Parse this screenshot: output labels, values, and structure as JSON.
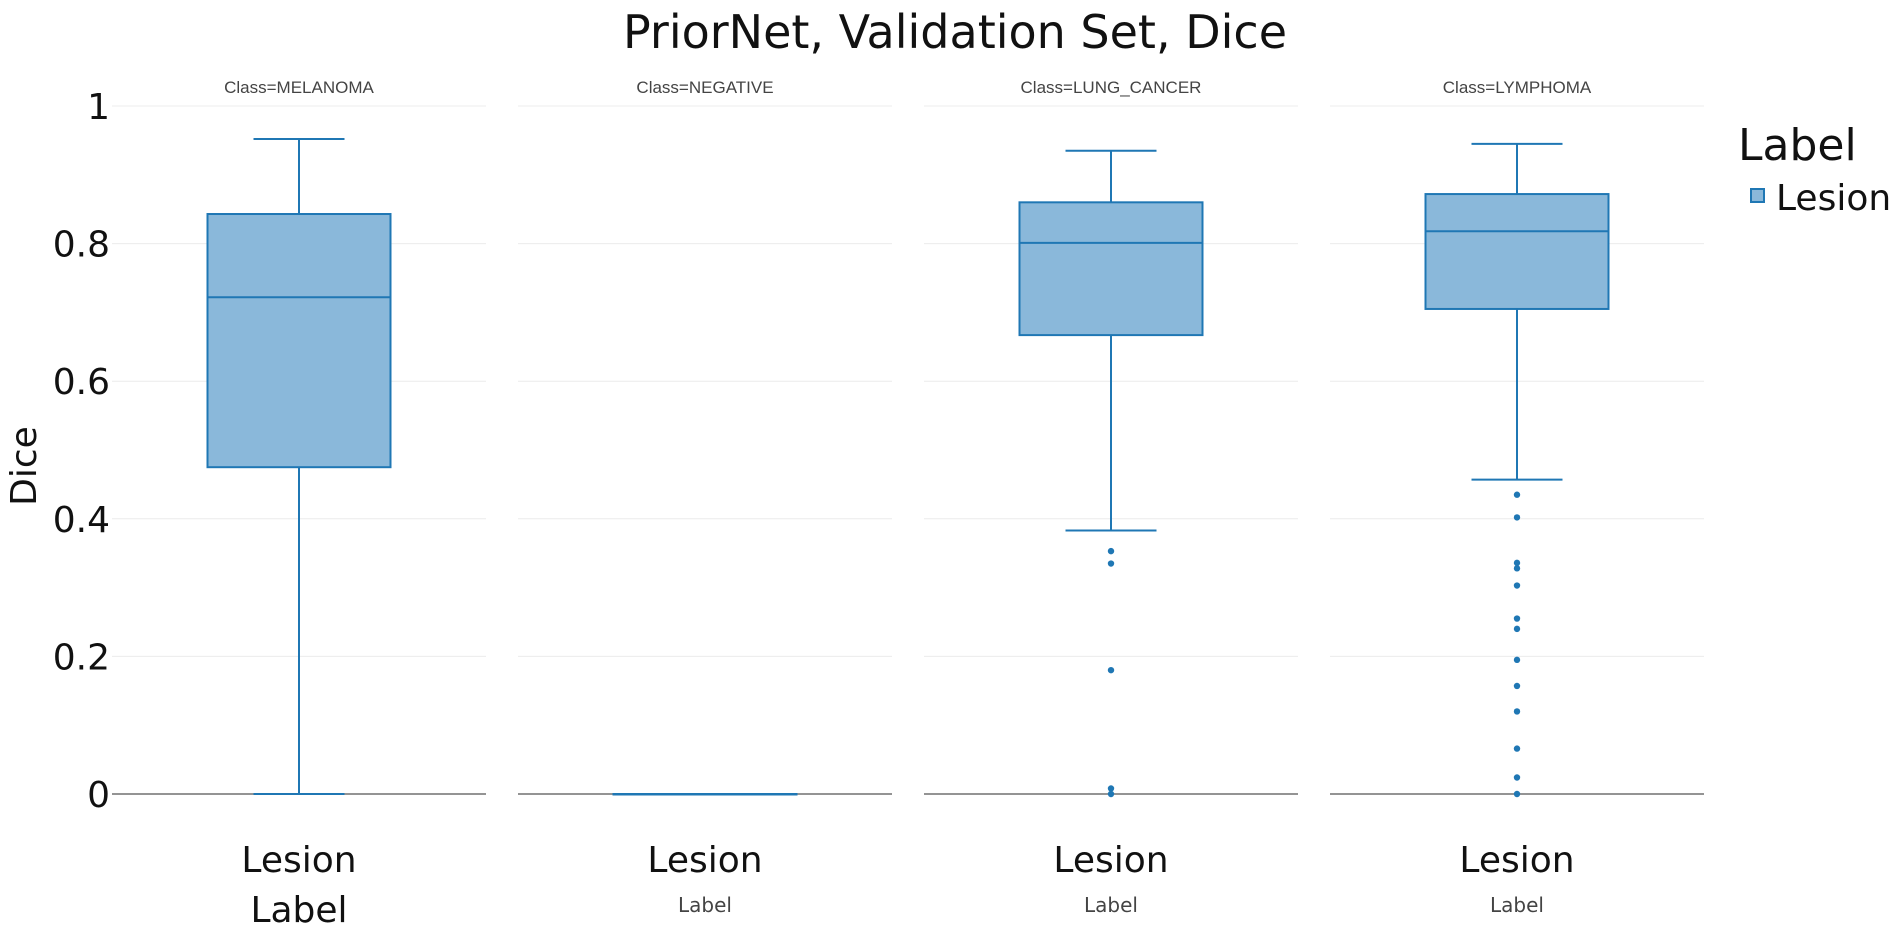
{
  "chart_data": {
    "type": "box",
    "title": "PriorNet, Validation Set, Dice",
    "ylabel": "Dice",
    "xlabel": "Label",
    "ylim": [
      0,
      1
    ],
    "yticks": [
      "0",
      "0.2",
      "0.4",
      "0.6",
      "0.8",
      "1"
    ],
    "grid": true,
    "legend": {
      "title": "Label",
      "position": "top-right",
      "entries": [
        "Lesion"
      ]
    },
    "colors": {
      "fill": "#8ab8da",
      "stroke": "#1f77b4",
      "grid": "#ececec",
      "zero_line": "#555555"
    },
    "facets": [
      {
        "label": "Class=MELANOMA",
        "category": "Lesion",
        "box": {
          "min": 0.0,
          "q1": 0.475,
          "median": 0.722,
          "q3": 0.843,
          "max": 0.952
        },
        "outliers": []
      },
      {
        "label": "Class=NEGATIVE",
        "category": "Lesion",
        "box": {
          "min": 0.0,
          "q1": 0.0,
          "median": 0.0,
          "q3": 0.0,
          "max": 0.0
        },
        "outliers": []
      },
      {
        "label": "Class=LUNG_CANCER",
        "category": "Lesion",
        "box": {
          "min": 0.383,
          "q1": 0.667,
          "median": 0.801,
          "q3": 0.86,
          "max": 0.935
        },
        "outliers": [
          0.353,
          0.335,
          0.18,
          0.008,
          0.0
        ]
      },
      {
        "label": "Class=LYMPHOMA",
        "category": "Lesion",
        "box": {
          "min": 0.457,
          "q1": 0.705,
          "median": 0.818,
          "q3": 0.872,
          "max": 0.945
        },
        "outliers": [
          0.435,
          0.402,
          0.336,
          0.328,
          0.303,
          0.255,
          0.24,
          0.195,
          0.157,
          0.12,
          0.066,
          0.024,
          0.0
        ]
      }
    ]
  }
}
